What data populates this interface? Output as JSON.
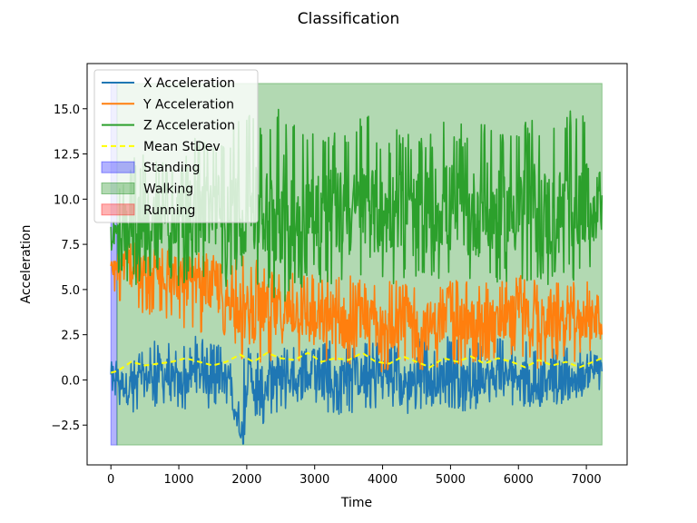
{
  "chart_data": {
    "type": "line",
    "title": "Classification",
    "xlabel": "Time",
    "ylabel": "Acceleration",
    "xlim": [
      -350,
      7600
    ],
    "ylim": [
      -4.7,
      17.5
    ],
    "xticks": [
      0,
      1000,
      2000,
      3000,
      4000,
      5000,
      6000,
      7000
    ],
    "yticks": [
      -2.5,
      0.0,
      2.5,
      5.0,
      7.5,
      10.0,
      12.5,
      15.0
    ],
    "xtick_labels": [
      "0",
      "1000",
      "2000",
      "3000",
      "4000",
      "5000",
      "6000",
      "7000"
    ],
    "ytick_labels": [
      "−2.5",
      "0.0",
      "2.5",
      "5.0",
      "7.5",
      "10.0",
      "12.5",
      "15.0"
    ],
    "grid": false,
    "legend_position": "top-left",
    "regions": [
      {
        "name": "Standing",
        "x": [
          0,
          90
        ],
        "y": [
          -3.6,
          16.4
        ],
        "color": "#0000ff"
      },
      {
        "name": "Walking",
        "x": [
          90,
          7230
        ],
        "y": [
          -3.6,
          16.4
        ],
        "color": "#008000"
      },
      {
        "name": "Running",
        "x": [],
        "y": [],
        "color": "#ff0000"
      }
    ],
    "series": [
      {
        "name": "X Acceleration",
        "color": "#1f77b4",
        "style": "solid",
        "x": [
          0,
          250,
          500,
          750,
          1000,
          1250,
          1500,
          1750,
          1950,
          2000,
          2250,
          2500,
          2750,
          3000,
          3250,
          3500,
          3750,
          4000,
          4250,
          4500,
          4750,
          5000,
          5250,
          5500,
          5750,
          6000,
          6250,
          6500,
          6750,
          7000,
          7230
        ],
        "y": [
          0.5,
          -0.5,
          0.0,
          0.5,
          -0.3,
          0.5,
          0.0,
          0.2,
          -3.6,
          0.2,
          -0.5,
          0.5,
          -0.2,
          0.3,
          -0.3,
          0.5,
          0.0,
          0.5,
          -0.5,
          0.3,
          0.0,
          0.5,
          -0.3,
          0.3,
          0.0,
          0.5,
          -0.2,
          0.3,
          0.0,
          0.3,
          0.7
        ],
        "min": [
          -0.7,
          -2.2,
          -1.5,
          -1.5,
          -1.5,
          -1.8,
          -1.5,
          -1.5,
          -3.6,
          -2.0,
          -2.5,
          -1.8,
          -2.0,
          -1.5,
          -2.0,
          -1.8,
          -2.0,
          -1.5,
          -2.0,
          -1.8,
          -1.5,
          -1.5,
          -1.8,
          -1.5,
          -1.5,
          -1.5,
          -1.5,
          -1.5,
          -1.2,
          -1.2,
          -0.5
        ],
        "max": [
          1.2,
          1.0,
          1.8,
          2.5,
          1.8,
          2.5,
          2.0,
          1.8,
          1.5,
          1.8,
          1.8,
          2.0,
          1.8,
          1.8,
          2.2,
          2.0,
          2.5,
          2.2,
          2.0,
          2.5,
          2.0,
          2.5,
          2.0,
          2.2,
          2.5,
          2.2,
          2.0,
          2.0,
          2.0,
          1.8,
          1.2
        ]
      },
      {
        "name": "Y Acceleration",
        "color": "#ff7f0e",
        "style": "solid",
        "x": [
          0,
          250,
          500,
          750,
          1000,
          1250,
          1500,
          1750,
          2000,
          2250,
          2500,
          2750,
          3000,
          3250,
          3500,
          3750,
          4000,
          4250,
          4500,
          4750,
          5000,
          5250,
          5500,
          5750,
          6000,
          6250,
          6500,
          6750,
          7000,
          7230
        ],
        "y": [
          6.0,
          6.5,
          5.5,
          6.0,
          5.5,
          5.0,
          5.0,
          4.5,
          3.5,
          4.0,
          3.5,
          4.0,
          3.0,
          3.5,
          3.0,
          3.5,
          2.5,
          3.5,
          3.0,
          3.0,
          3.5,
          3.0,
          3.5,
          3.0,
          4.0,
          3.0,
          3.5,
          3.0,
          3.5,
          3.0
        ],
        "min": [
          5.0,
          3.6,
          3.5,
          3.5,
          3.0,
          2.5,
          2.5,
          2.0,
          0.5,
          1.0,
          0.5,
          1.0,
          1.0,
          0.5,
          0.5,
          1.0,
          0.0,
          1.0,
          0.5,
          0.5,
          1.0,
          0.5,
          1.0,
          1.0,
          1.5,
          0.5,
          1.0,
          1.0,
          1.0,
          1.5
        ],
        "max": [
          6.5,
          8.0,
          7.0,
          7.5,
          7.0,
          7.0,
          7.0,
          6.5,
          7.0,
          6.5,
          6.0,
          6.5,
          6.0,
          6.0,
          6.0,
          5.5,
          5.5,
          5.5,
          5.5,
          5.5,
          5.5,
          5.5,
          5.5,
          5.5,
          6.0,
          5.5,
          5.5,
          5.5,
          5.5,
          4.5
        ]
      },
      {
        "name": "Z Acceleration",
        "color": "#2ca02c",
        "style": "solid",
        "x": [
          0,
          250,
          500,
          750,
          1000,
          1250,
          1500,
          1750,
          2000,
          2250,
          2500,
          2750,
          3000,
          3250,
          3500,
          3750,
          4000,
          4250,
          4500,
          4750,
          5000,
          5250,
          5500,
          5750,
          6000,
          6250,
          6500,
          6750,
          7000,
          7230
        ],
        "y": [
          8.0,
          8.0,
          8.5,
          9.0,
          9.0,
          9.0,
          9.5,
          9.0,
          9.5,
          9.0,
          9.5,
          9.0,
          9.5,
          9.5,
          9.0,
          9.5,
          9.0,
          9.5,
          9.0,
          9.5,
          9.5,
          9.0,
          9.5,
          9.0,
          9.5,
          9.5,
          9.0,
          9.5,
          9.5,
          9.5
        ],
        "min": [
          6.5,
          5.0,
          5.5,
          6.0,
          5.0,
          5.5,
          5.5,
          5.0,
          5.5,
          5.0,
          4.0,
          5.0,
          5.5,
          5.0,
          5.5,
          5.0,
          5.0,
          5.5,
          5.0,
          5.5,
          5.0,
          5.5,
          5.0,
          5.5,
          5.0,
          5.5,
          5.0,
          5.5,
          5.5,
          5.8
        ],
        "max": [
          9.5,
          12.0,
          13.0,
          12.5,
          11.5,
          13.5,
          13.0,
          14.0,
          15.0,
          14.0,
          16.0,
          14.5,
          13.5,
          14.0,
          13.5,
          15.0,
          13.0,
          14.0,
          13.5,
          14.0,
          14.5,
          14.0,
          14.5,
          14.5,
          14.0,
          15.0,
          14.0,
          15.0,
          14.5,
          11.0
        ]
      },
      {
        "name": "Mean StDev",
        "color": "#ffff00",
        "style": "dashed",
        "x": [
          0,
          100,
          300,
          500,
          700,
          900,
          1100,
          1300,
          1500,
          1700,
          1900,
          2100,
          2300,
          2500,
          2700,
          2900,
          3100,
          3300,
          3500,
          3700,
          3900,
          4100,
          4300,
          4500,
          4700,
          4900,
          5100,
          5300,
          5500,
          5700,
          5900,
          6100,
          6300,
          6500,
          6700,
          6900,
          7100,
          7230
        ],
        "y": [
          0.4,
          0.5,
          1.0,
          0.8,
          0.9,
          1.0,
          1.2,
          1.0,
          0.8,
          1.0,
          1.4,
          1.0,
          1.5,
          1.2,
          1.1,
          1.5,
          1.0,
          1.2,
          1.1,
          1.5,
          1.0,
          0.9,
          1.3,
          1.0,
          0.7,
          1.2,
          1.0,
          1.3,
          0.9,
          1.2,
          1.0,
          0.7,
          1.1,
          0.8,
          1.0,
          0.7,
          1.0,
          1.2
        ]
      }
    ]
  }
}
